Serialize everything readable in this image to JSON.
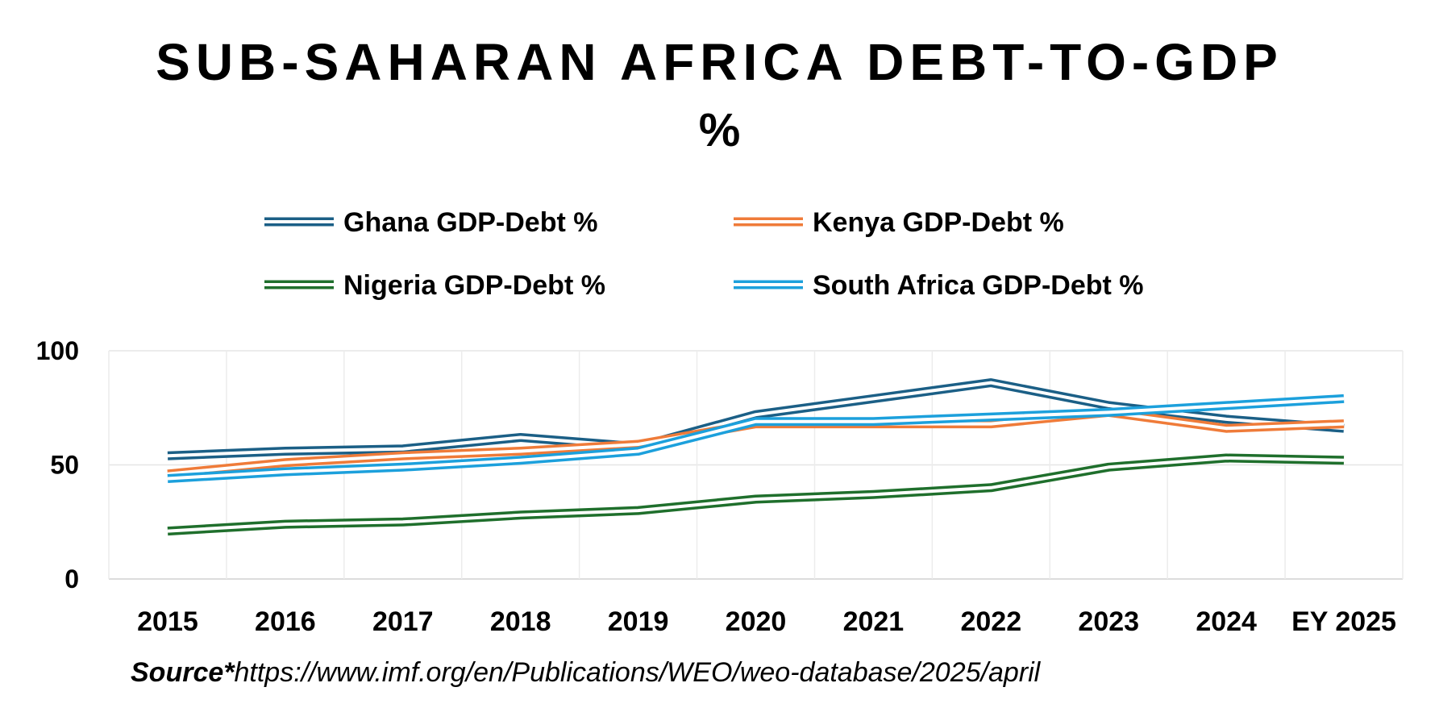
{
  "chart_data": {
    "type": "line",
    "title": "SUB-SAHARAN AFRICA DEBT-TO-GDP",
    "subtitle": "%",
    "categories": [
      "2015",
      "2016",
      "2017",
      "2018",
      "2019",
      "2020",
      "2021",
      "2022",
      "2023",
      "2024",
      "EY 2025"
    ],
    "ylim": [
      0,
      100
    ],
    "yticks": [
      0,
      50,
      100
    ],
    "grid": true,
    "legend_position": "top",
    "series": [
      {
        "name": "Ghana GDP-Debt %",
        "color": "#1b5f86",
        "values": [
          54,
          56,
          57,
          62,
          58,
          72,
          79,
          86,
          76,
          70,
          66
        ]
      },
      {
        "name": "Kenya GDP-Debt %",
        "color": "#ef7b39",
        "values": [
          46,
          51,
          54,
          56,
          59,
          68,
          68,
          68,
          73,
          66,
          68
        ]
      },
      {
        "name": "Nigeria GDP-Debt %",
        "color": "#1f6f2c",
        "values": [
          21,
          24,
          25,
          28,
          30,
          35,
          37,
          40,
          49,
          53,
          52
        ]
      },
      {
        "name": "South Africa GDP-Debt %",
        "color": "#1ca0dc",
        "values": [
          44,
          47,
          49,
          52,
          56,
          69,
          69,
          71,
          73,
          76,
          79
        ]
      }
    ]
  },
  "source": {
    "label": "Source*",
    "url": "https://www.imf.org/en/Publications/WEO/weo-database/2025/april"
  }
}
